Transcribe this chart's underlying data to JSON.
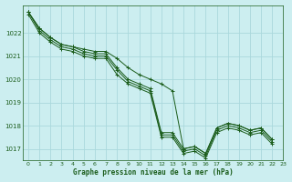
{
  "title": "Graphe pression niveau de la mer (hPa)",
  "background_color": "#cceef0",
  "grid_color": "#aad8dc",
  "line_color": "#1a5c1a",
  "xlim": [
    -0.5,
    23
  ],
  "ylim": [
    1016.5,
    1023.2
  ],
  "yticks": [
    1017,
    1018,
    1019,
    1020,
    1021,
    1022
  ],
  "xticks": [
    0,
    1,
    2,
    3,
    4,
    5,
    6,
    7,
    8,
    9,
    10,
    11,
    12,
    13,
    14,
    15,
    16,
    17,
    18,
    19,
    20,
    21,
    22,
    23
  ],
  "series": [
    [
      1022.9,
      1022.2,
      1021.8,
      1021.5,
      1021.4,
      1021.2,
      1021.1,
      1021.1,
      1020.5,
      1020.0,
      1019.8,
      1019.6,
      1017.7,
      1017.7,
      1017.0,
      1017.1,
      1016.8,
      1017.9,
      1018.1,
      1018.0,
      1017.8,
      1017.9,
      1017.4
    ],
    [
      1022.9,
      1022.1,
      1021.7,
      1021.4,
      1021.3,
      1021.1,
      1021.0,
      1021.0,
      1020.4,
      1019.9,
      1019.7,
      1019.5,
      1017.6,
      1017.6,
      1016.9,
      1017.0,
      1016.7,
      1017.8,
      1018.0,
      1017.9,
      1017.7,
      1017.8,
      1017.3
    ],
    [
      1022.8,
      1022.0,
      1021.6,
      1021.3,
      1021.2,
      1021.0,
      1020.9,
      1020.9,
      1020.2,
      1019.8,
      1019.6,
      1019.4,
      1017.5,
      1017.5,
      1016.8,
      1016.9,
      1016.6,
      1017.7,
      1017.9,
      1017.8,
      1017.6,
      1017.7,
      1017.2
    ],
    [
      1022.9,
      1022.2,
      1021.8,
      1021.5,
      1021.4,
      1021.3,
      1021.2,
      1021.2,
      1020.9,
      1020.5,
      1020.2,
      1020.0,
      1019.8,
      1019.5,
      1017.0,
      1017.1,
      1016.8,
      1017.9,
      1018.1,
      1018.0,
      1017.8,
      1017.9,
      1017.4
    ]
  ]
}
